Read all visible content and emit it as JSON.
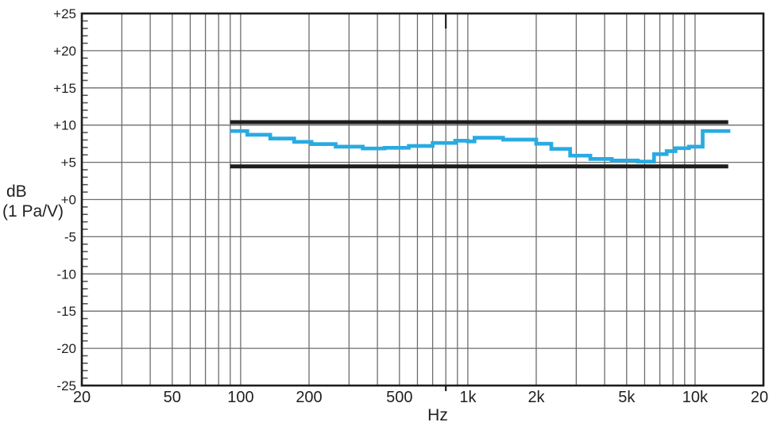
{
  "page": {
    "background": "#ffffff"
  },
  "chart_data": {
    "type": "line",
    "subtype": "stepped-frequency-response-with-tolerance-band",
    "title": "",
    "xlabel": "Hz",
    "ylabel_line1": "dB",
    "ylabel_line2": "(1 Pa/V)",
    "x_scale": "log",
    "x_min_hz": 20,
    "x_max_hz": 20000,
    "y_min_db": -25,
    "y_max_db": 25,
    "y_major_step_db": 5,
    "y_minor_step_db": 1,
    "grid": "on",
    "legend": "none",
    "x_ticks": [
      {
        "hz": 20,
        "label": "20"
      },
      {
        "hz": 50,
        "label": "50"
      },
      {
        "hz": 100,
        "label": "100"
      },
      {
        "hz": 200,
        "label": "200"
      },
      {
        "hz": 500,
        "label": "500"
      },
      {
        "hz": 1000,
        "label": "1k"
      },
      {
        "hz": 2000,
        "label": "2k"
      },
      {
        "hz": 5000,
        "label": "5k"
      },
      {
        "hz": 10000,
        "label": "10k"
      },
      {
        "hz": 20000,
        "label": "20k"
      }
    ],
    "y_ticks": [
      {
        "db": 25,
        "label": "+25"
      },
      {
        "db": 20,
        "label": "+20"
      },
      {
        "db": 15,
        "label": "+15"
      },
      {
        "db": 10,
        "label": "+10"
      },
      {
        "db": 5,
        "label": "+5"
      },
      {
        "db": 0,
        "label": "+0"
      },
      {
        "db": -5,
        "label": "-5"
      },
      {
        "db": -10,
        "label": "-10"
      },
      {
        "db": -15,
        "label": "-15"
      },
      {
        "db": -20,
        "label": "-20"
      },
      {
        "db": -25,
        "label": "-25"
      }
    ],
    "x_gridlines_hz": [
      30,
      40,
      50,
      60,
      70,
      80,
      90,
      100,
      200,
      300,
      400,
      500,
      600,
      700,
      800,
      900,
      1000,
      2000,
      3000,
      4000,
      5000,
      6000,
      7000,
      8000,
      9000,
      10000
    ],
    "reference_mark_hz": 800,
    "tolerance_band": {
      "upper_db": 10.4,
      "lower_db": 4.45,
      "start_hz": 90,
      "end_hz": 14000
    },
    "response": {
      "name": "frequency-response",
      "style": "step",
      "start_hz": 90,
      "end_hz": 14300,
      "points_hz_db": [
        [
          90,
          9.2
        ],
        [
          107,
          8.7
        ],
        [
          135,
          8.2
        ],
        [
          172,
          7.75
        ],
        [
          205,
          7.45
        ],
        [
          262,
          7.1
        ],
        [
          345,
          6.85
        ],
        [
          430,
          6.95
        ],
        [
          550,
          7.2
        ],
        [
          700,
          7.6
        ],
        [
          880,
          7.9
        ],
        [
          1000,
          7.8
        ],
        [
          1070,
          8.3
        ],
        [
          1430,
          8.05
        ],
        [
          2000,
          7.5
        ],
        [
          2330,
          6.8
        ],
        [
          2820,
          5.9
        ],
        [
          3460,
          5.45
        ],
        [
          4300,
          5.25
        ],
        [
          5600,
          5.1
        ],
        [
          6600,
          6.1
        ],
        [
          7500,
          6.5
        ],
        [
          8200,
          6.9
        ],
        [
          9400,
          7.1
        ],
        [
          10800,
          9.2
        ]
      ]
    },
    "colors": {
      "grid": "#6d6d6d",
      "minor_tick": "#555555",
      "border": "#1d1d1b",
      "text": "#231f20",
      "response": "#29abe2",
      "tolerance": "#1d1d1b"
    }
  }
}
